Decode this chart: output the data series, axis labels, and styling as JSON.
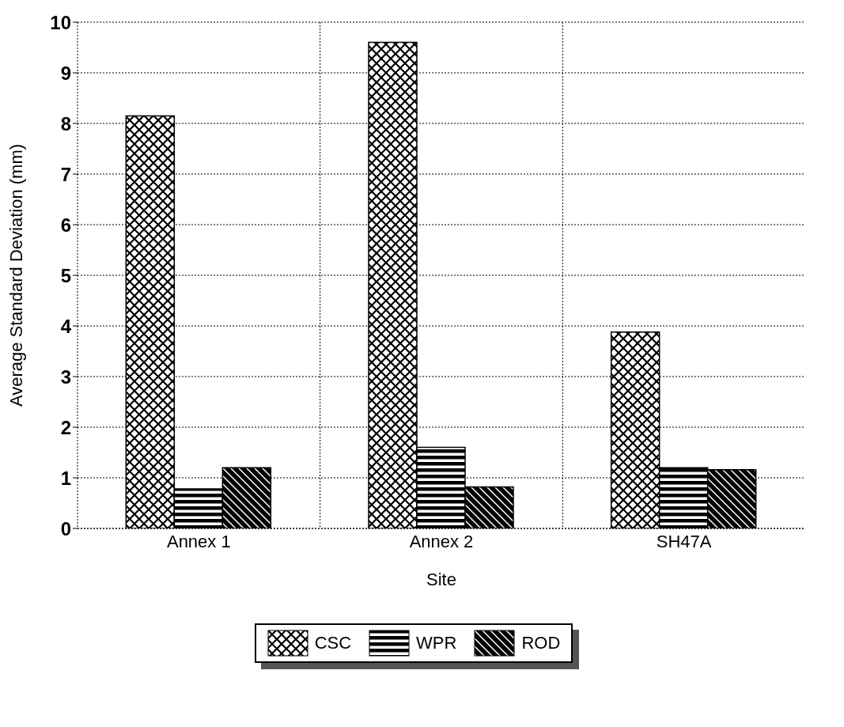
{
  "chart_data": {
    "type": "bar",
    "xlabel": "Site",
    "ylabel": "Average Standard Deviation (mm)",
    "categories": [
      "Annex 1",
      "Annex 2",
      "SH47A"
    ],
    "series": [
      {
        "name": "CSC",
        "color": "#000000",
        "values": [
          8.15,
          9.6,
          3.88
        ]
      },
      {
        "name": "WPR",
        "color": "#000000",
        "values": [
          0.78,
          1.6,
          1.2
        ]
      },
      {
        "name": "ROD",
        "color": "#000000",
        "values": [
          1.2,
          0.82,
          1.16
        ]
      }
    ],
    "ylim": [
      0,
      10
    ],
    "yticks": [
      0,
      1,
      2,
      3,
      4,
      5,
      6,
      7,
      8,
      9,
      10
    ],
    "grid": true,
    "legend": "bottom"
  }
}
